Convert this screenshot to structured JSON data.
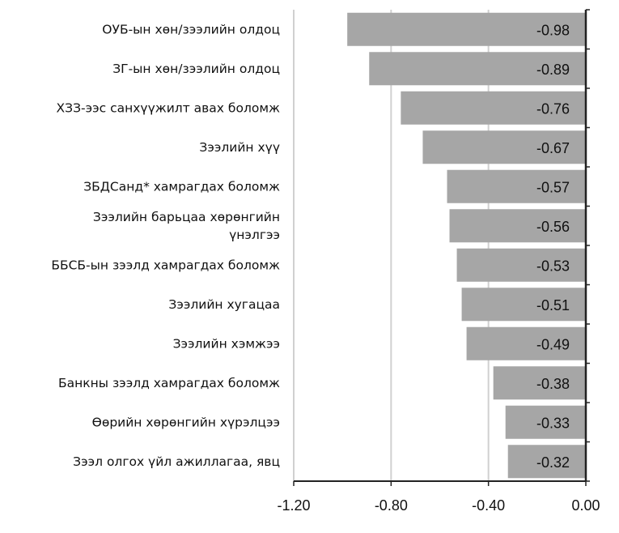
{
  "chart_data": {
    "type": "bar",
    "orientation": "horizontal",
    "categories": [
      "ОУБ-ын хөн/зээлийн олдоц",
      "ЗГ-ын хөн/зээлийн олдоц",
      "ХЗЗ-ээс санхүүжилт авах боломж",
      "Зээлийн хүү",
      "ЗБДСанд* хамрагдах боломж",
      "Зээлийн барьцаа хөрөнгийн үнэлгээ",
      "ББСБ-ын зээлд хамрагдах боломж",
      "Зээлийн хугацаа",
      "Зээлийн хэмжээ",
      "Банкны зээлд хамрагдах боломж",
      "Өөрийн хөрөнгийн хүрэлцээ",
      "Зээл олгох үйл ажиллагаа, явц"
    ],
    "category_lines": [
      [
        "ОУБ-ын хөн/зээлийн олдоц"
      ],
      [
        "ЗГ-ын хөн/зээлийн олдоц"
      ],
      [
        "ХЗЗ-ээс санхүүжилт авах боломж"
      ],
      [
        "Зээлийн хүү"
      ],
      [
        "ЗБДСанд* хамрагдах боломж"
      ],
      [
        "Зээлийн барьцаа хөрөнгийн",
        "үнэлгээ"
      ],
      [
        "ББСБ-ын зээлд хамрагдах боломж"
      ],
      [
        "Зээлийн хугацаа"
      ],
      [
        "Зээлийн хэмжээ"
      ],
      [
        "Банкны зээлд хамрагдах боломж"
      ],
      [
        "Өөрийн хөрөнгийн хүрэлцээ"
      ],
      [
        "Зээл олгох үйл ажиллагаа, явц"
      ]
    ],
    "values": [
      -0.98,
      -0.89,
      -0.76,
      -0.67,
      -0.57,
      -0.56,
      -0.53,
      -0.51,
      -0.49,
      -0.38,
      -0.33,
      -0.32
    ],
    "value_labels": [
      "-0.98",
      "-0.89",
      "-0.76",
      "-0.67",
      "-0.57",
      "-0.56",
      "-0.53",
      "-0.51",
      "-0.49",
      "-0.38",
      "-0.33",
      "-0.32"
    ],
    "xlim": [
      -1.2,
      0.0
    ],
    "xticks": [
      -1.2,
      -0.8,
      -0.4,
      0.0
    ],
    "xtick_labels": [
      "-1.20",
      "-0.80",
      "-0.40",
      "0.00"
    ],
    "grid": true,
    "legend": "none",
    "bar_color": "#a6a6a6",
    "grid_color": "#d0d0d0",
    "axis_color": "#222222",
    "title": "",
    "xlabel": "",
    "ylabel": ""
  }
}
